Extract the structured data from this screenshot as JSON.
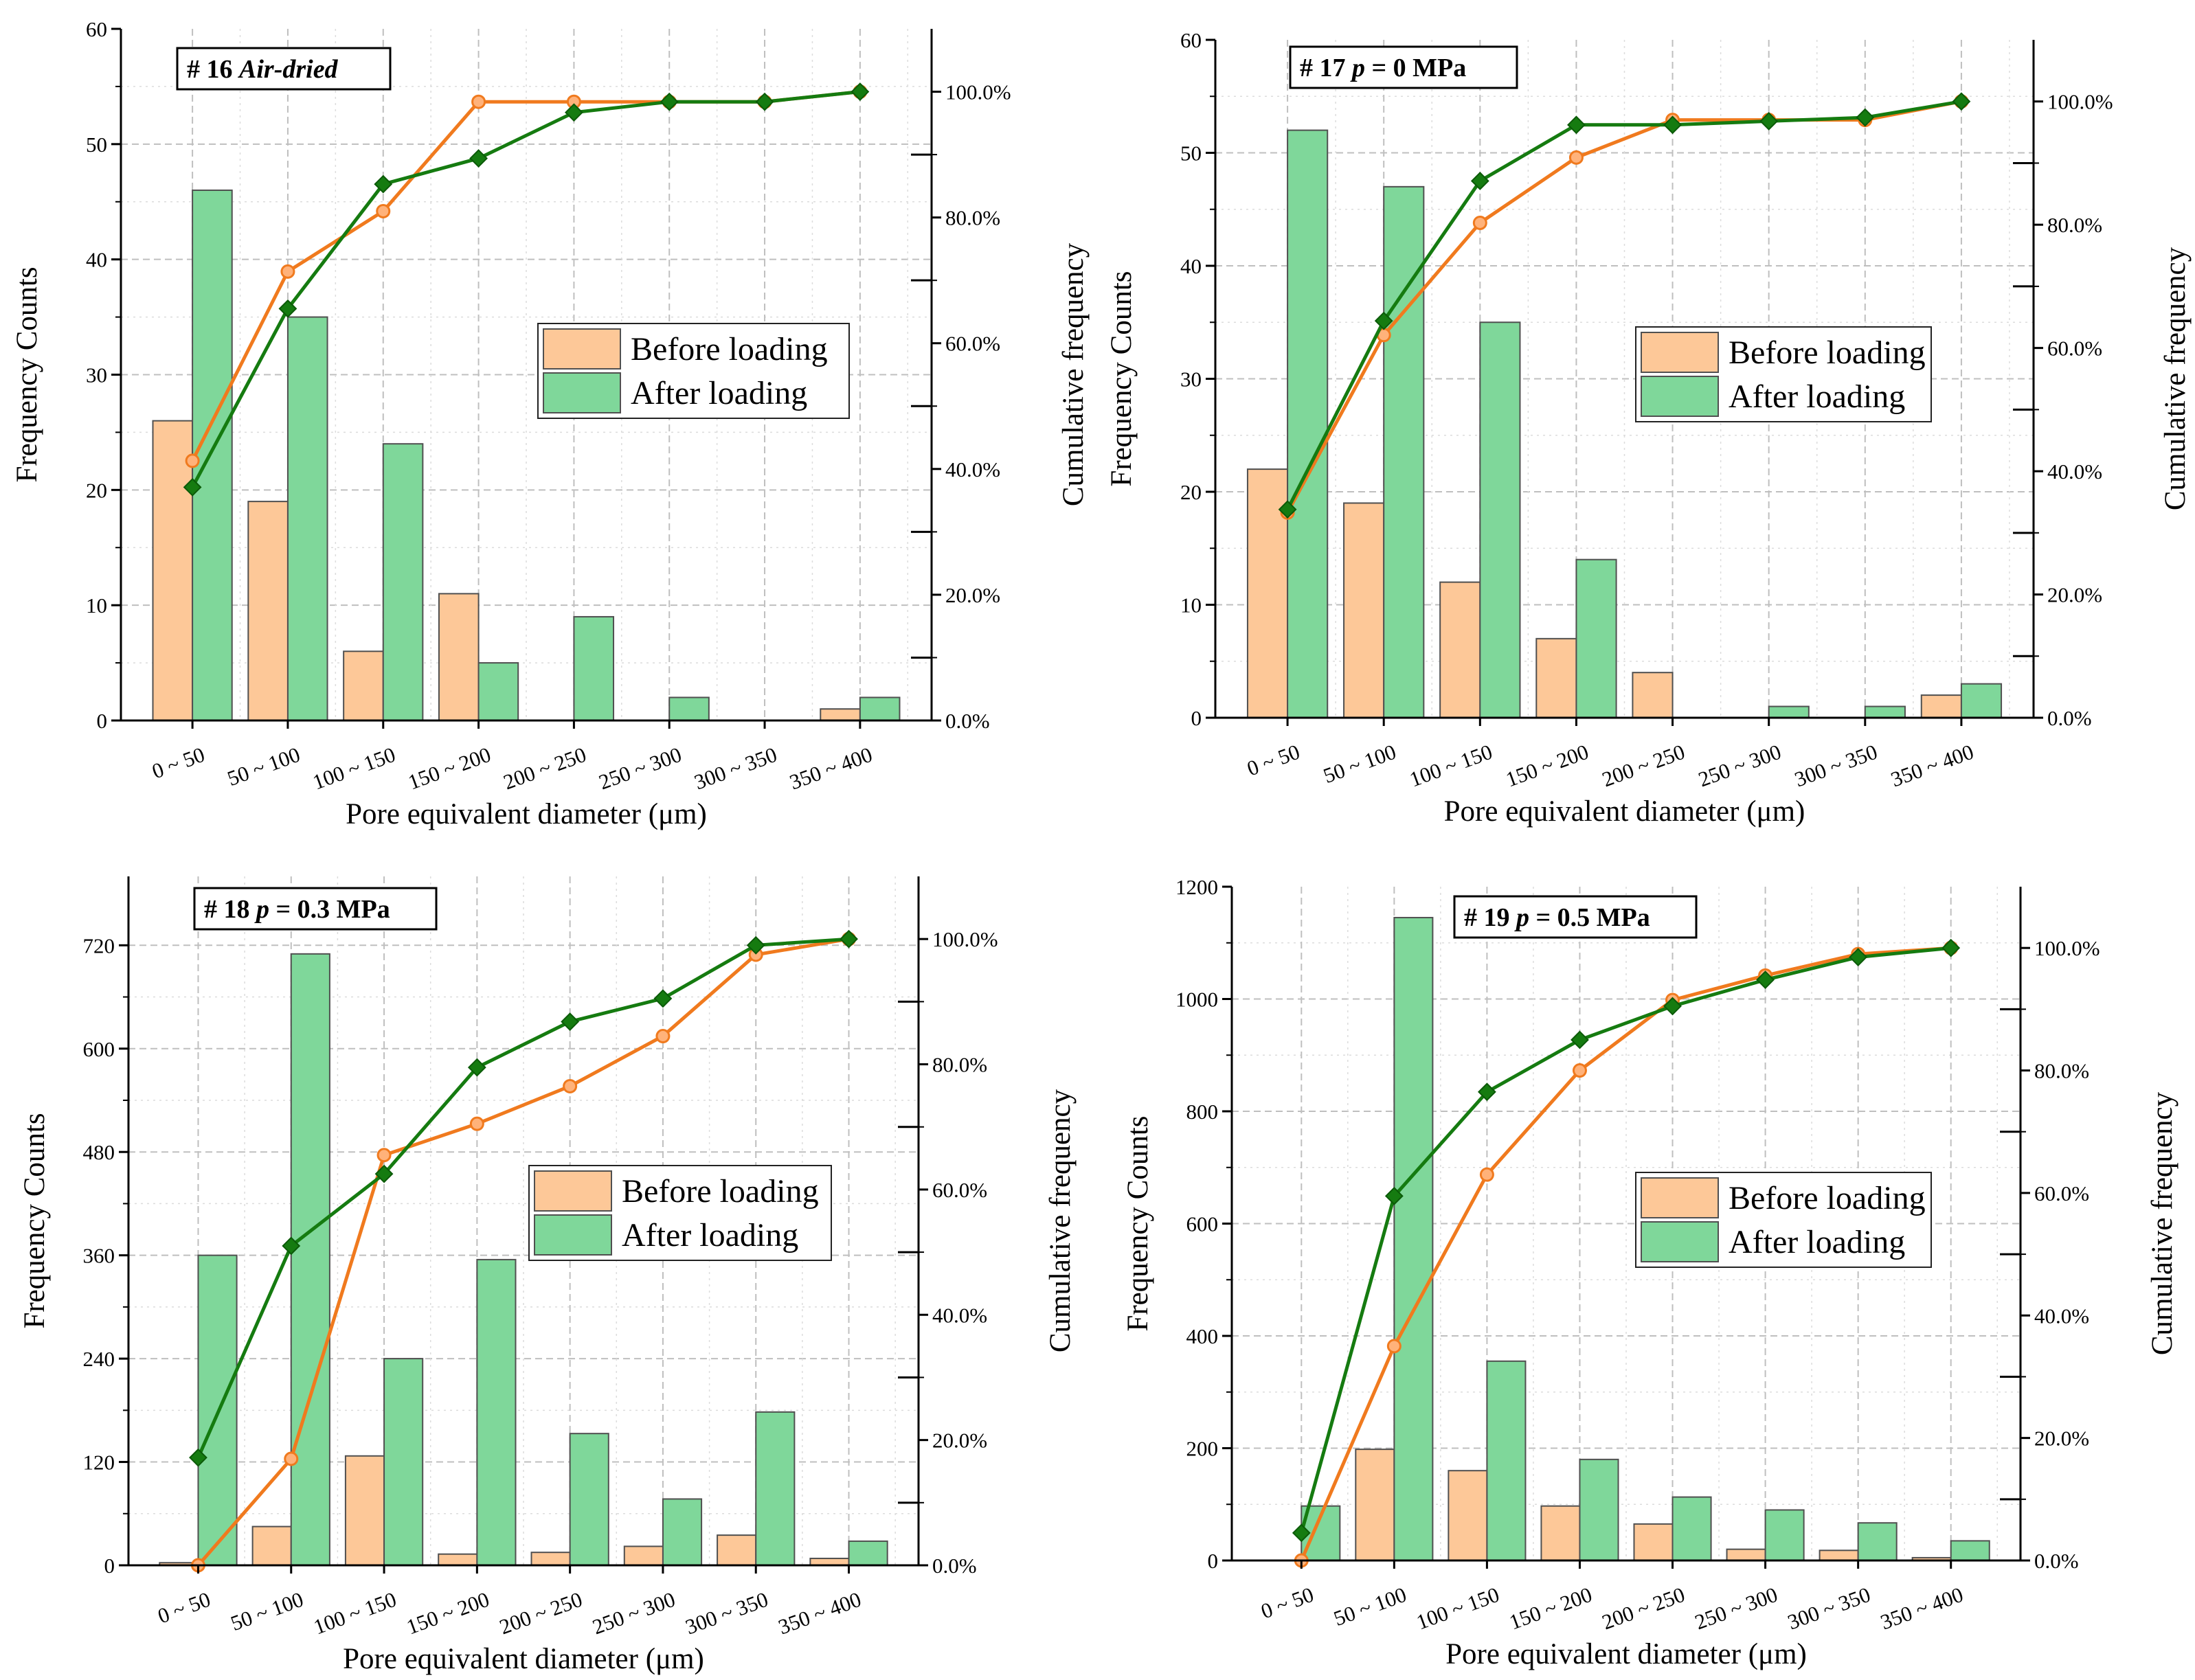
{
  "shared": {
    "categories": [
      "0 ~ 50",
      "50 ~ 100",
      "100 ~ 150",
      "150 ~ 200",
      "200 ~ 250",
      "250 ~ 300",
      "300 ~ 350",
      "350 ~ 400"
    ],
    "xlabel": "Pore equivalent diameter (μm)",
    "ylabel_left": "Frequency Counts",
    "ylabel_right": "Cumulative frequency",
    "legend": {
      "before": "Before loading",
      "after": "After loading"
    },
    "colors": {
      "before_bar": "#fdc898",
      "after_bar": "#7fd79a",
      "before_line": "#f07a1e",
      "after_line": "#157b10",
      "bar_stroke": "#505050"
    }
  },
  "chart_data": [
    {
      "type": "bar",
      "id": "p16",
      "tag": {
        "num": "#  16  ",
        "cond": "Air-dried",
        "eq": ""
      },
      "categories": [
        "0 ~ 50",
        "50 ~ 100",
        "100 ~ 150",
        "150 ~ 200",
        "200 ~ 250",
        "250 ~ 300",
        "300 ~ 350",
        "350 ~ 400"
      ],
      "yticks": [
        0,
        10,
        20,
        30,
        40,
        50,
        60
      ],
      "ylim": [
        0,
        60
      ],
      "y2ticks": [
        "0.0%",
        "20.0%",
        "40.0%",
        "60.0%",
        "80.0%",
        "100.0%"
      ],
      "y2lim": [
        0,
        1.1
      ],
      "series": [
        {
          "name": "Before loading",
          "values": [
            26,
            19,
            6,
            11,
            0,
            0,
            0,
            1
          ]
        },
        {
          "name": "After loading",
          "values": [
            46,
            35,
            24,
            5,
            9,
            2,
            0,
            2
          ]
        }
      ],
      "cumulative": [
        {
          "name": "Before loading",
          "values": [
            0.413,
            0.714,
            0.81,
            0.984,
            0.984,
            0.984,
            0.984,
            1.0
          ]
        },
        {
          "name": "After loading",
          "values": [
            0.371,
            0.655,
            0.853,
            0.894,
            0.967,
            0.984,
            0.984,
            1.0
          ]
        }
      ]
    },
    {
      "type": "bar",
      "id": "p17",
      "tag": {
        "num": "# 17  ",
        "cond": "p",
        "eq": " = 0 MPa"
      },
      "categories": [
        "0 ~ 50",
        "50 ~ 100",
        "100 ~ 150",
        "150 ~ 200",
        "200 ~ 250",
        "250 ~ 300",
        "300 ~ 350",
        "350 ~ 400"
      ],
      "yticks": [
        0,
        10,
        20,
        30,
        40,
        50,
        60
      ],
      "ylim": [
        0,
        60
      ],
      "y2ticks": [
        "0.0%",
        "20.0%",
        "40.0%",
        "60.0%",
        "80.0%",
        "100.0%"
      ],
      "y2lim": [
        0,
        1.1
      ],
      "series": [
        {
          "name": "Before loading",
          "values": [
            22,
            19,
            12,
            7,
            4,
            0,
            0,
            2
          ]
        },
        {
          "name": "After loading",
          "values": [
            52,
            47,
            35,
            14,
            0,
            1,
            1,
            3
          ]
        }
      ],
      "cumulative": [
        {
          "name": "Before loading",
          "values": [
            0.333,
            0.621,
            0.803,
            0.909,
            0.97,
            0.97,
            0.97,
            1.0
          ]
        },
        {
          "name": "After loading",
          "values": [
            0.338,
            0.644,
            0.871,
            0.962,
            0.962,
            0.968,
            0.974,
            1.0
          ]
        }
      ]
    },
    {
      "type": "bar",
      "id": "p18",
      "tag": {
        "num": "# 18  ",
        "cond": "p",
        "eq": " = 0.3 MPa"
      },
      "categories": [
        "0 ~ 50",
        "50 ~ 100",
        "100 ~ 150",
        "150 ~ 200",
        "200 ~ 250",
        "250 ~ 300",
        "300 ~ 350",
        "350 ~ 400"
      ],
      "yticks": [
        0,
        120,
        240,
        360,
        480,
        600,
        720
      ],
      "ylim": [
        0,
        800
      ],
      "y2ticks": [
        "0.0%",
        "20.0%",
        "40.0%",
        "60.0%",
        "80.0%",
        "100.0%"
      ],
      "y2lim": [
        0,
        1.1
      ],
      "series": [
        {
          "name": "Before loading",
          "values": [
            3,
            45,
            127,
            13,
            15,
            22,
            35,
            8
          ]
        },
        {
          "name": "After loading",
          "values": [
            360,
            710,
            240,
            355,
            153,
            77,
            178,
            28
          ]
        }
      ],
      "cumulative": [
        {
          "name": "Before loading",
          "values": [
            0.0,
            0.17,
            0.655,
            0.705,
            0.765,
            0.845,
            0.975,
            1.0
          ]
        },
        {
          "name": "After loading",
          "values": [
            0.172,
            0.51,
            0.625,
            0.795,
            0.868,
            0.905,
            0.99,
            1.0
          ]
        }
      ]
    },
    {
      "type": "bar",
      "id": "p19",
      "tag": {
        "num": "# 19  ",
        "cond": "p",
        "eq": " = 0.5 MPa"
      },
      "categories": [
        "0 ~ 50",
        "50 ~ 100",
        "100 ~ 150",
        "150 ~ 200",
        "200 ~ 250",
        "250 ~ 300",
        "300 ~ 350",
        "350 ~ 400"
      ],
      "yticks": [
        0,
        200,
        400,
        600,
        800,
        1000,
        1200
      ],
      "ylim": [
        0,
        1200
      ],
      "y2ticks": [
        "0.0%",
        "20.0%",
        "40.0%",
        "60.0%",
        "80.0%",
        "100.0%"
      ],
      "y2lim": [
        0,
        1.1
      ],
      "series": [
        {
          "name": "Before loading",
          "values": [
            0,
            198,
            160,
            97,
            65,
            20,
            18,
            5
          ]
        },
        {
          "name": "After loading",
          "values": [
            97,
            1145,
            355,
            180,
            113,
            90,
            67,
            35
          ]
        }
      ],
      "cumulative": [
        {
          "name": "Before loading",
          "values": [
            0.0,
            0.35,
            0.63,
            0.8,
            0.915,
            0.955,
            0.99,
            1.0
          ]
        },
        {
          "name": "After loading",
          "values": [
            0.045,
            0.595,
            0.765,
            0.85,
            0.905,
            0.948,
            0.985,
            1.0
          ]
        }
      ]
    }
  ]
}
